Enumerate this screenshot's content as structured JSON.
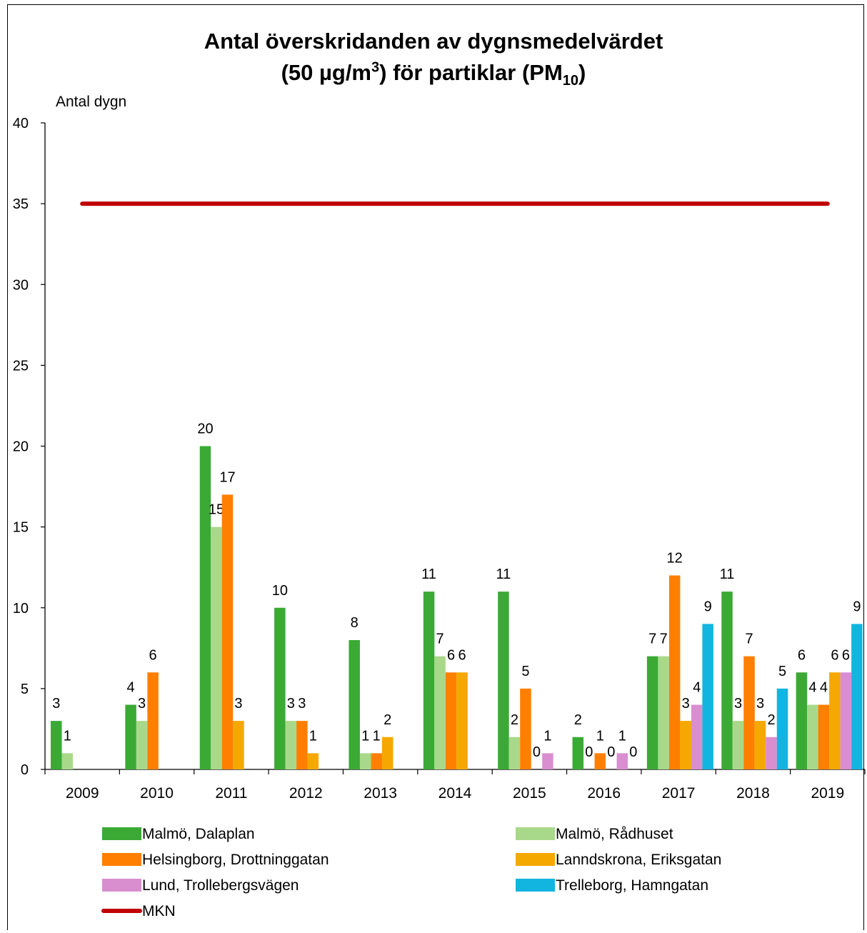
{
  "chart_data": {
    "type": "bar",
    "title": {
      "line1": "Antal överskridanden av dygnsmedelvärdet",
      "line2_prefix": "(50 µg/m",
      "line2_sup": "3",
      "line2_mid": ") för partiklar (PM",
      "line2_sub": "10",
      "line2_suffix": ")"
    },
    "ylabel": "Antal dygn",
    "xlabel": "",
    "ylim": [
      0,
      40
    ],
    "yticks": [
      0,
      5,
      10,
      15,
      20,
      25,
      30,
      35,
      40
    ],
    "grid": false,
    "legend_position": "bottom",
    "categories": [
      "2009",
      "2010",
      "2011",
      "2012",
      "2013",
      "2014",
      "2015",
      "2016",
      "2017",
      "2018",
      "2019"
    ],
    "series": [
      {
        "name": "Malmö, Dalaplan",
        "color": "#3aaa35",
        "values": [
          3,
          4,
          20,
          10,
          8,
          11,
          11,
          2,
          7,
          11,
          6
        ]
      },
      {
        "name": "Malmö, Rådhuset",
        "color": "#a8d98a",
        "values": [
          1,
          3,
          15,
          3,
          1,
          7,
          2,
          0,
          7,
          3,
          4
        ]
      },
      {
        "name": "Helsingborg, Drottninggatan",
        "color": "#ff7f00",
        "values": [
          null,
          6,
          17,
          3,
          1,
          6,
          5,
          1,
          12,
          7,
          4
        ]
      },
      {
        "name": "Lanndskrona, Eriksgatan",
        "color": "#f5a800",
        "values": [
          null,
          null,
          3,
          1,
          2,
          6,
          0,
          0,
          3,
          3,
          6
        ]
      },
      {
        "name": "Lund, Trollebergsvägen",
        "color": "#d98ed0",
        "values": [
          null,
          null,
          null,
          null,
          null,
          null,
          1,
          1,
          4,
          2,
          6
        ]
      },
      {
        "name": "Trelleborg, Hamngatan",
        "color": "#12b5e0",
        "values": [
          null,
          null,
          null,
          null,
          null,
          null,
          null,
          0,
          9,
          5,
          9
        ]
      }
    ],
    "reference_line": {
      "name": "MKN",
      "value": 35,
      "color": "#c00000",
      "from": "2009",
      "to": "2019"
    }
  }
}
